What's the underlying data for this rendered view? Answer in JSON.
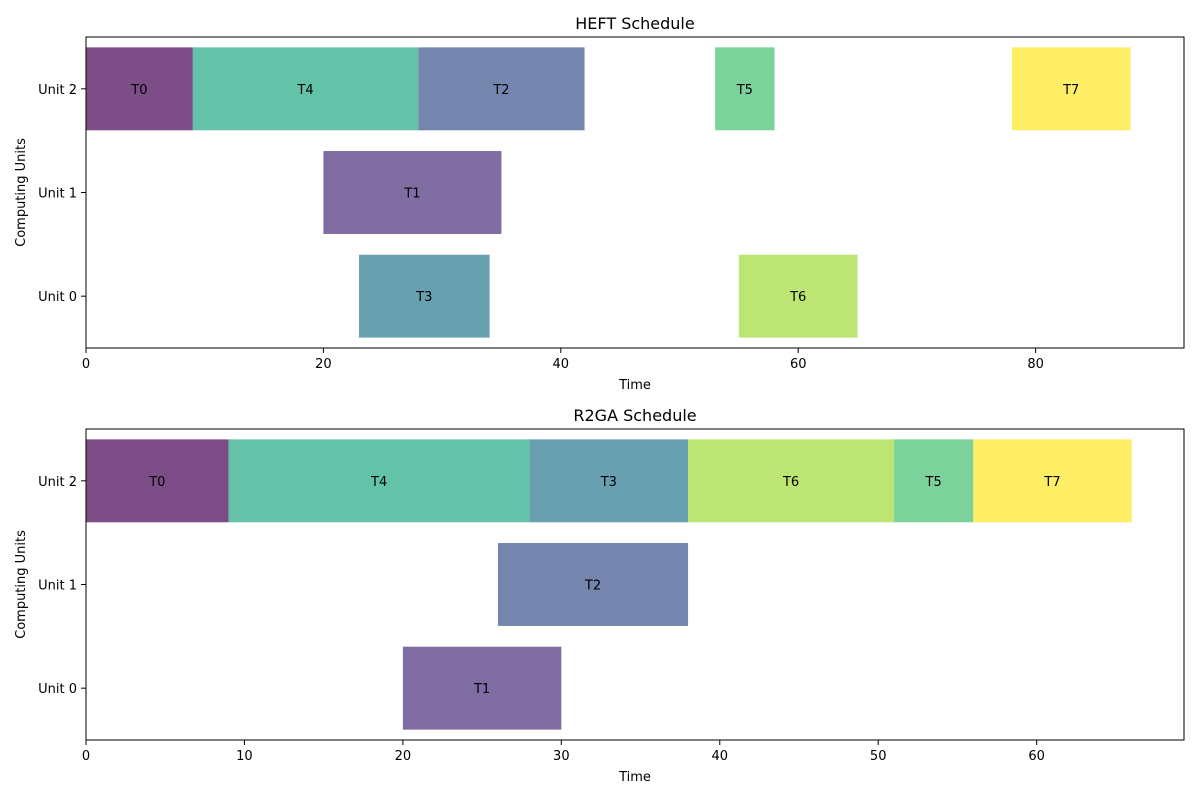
{
  "chart_data": [
    {
      "type": "bar",
      "orientation": "horizontal-gantt",
      "title": "HEFT Schedule",
      "xlabel": "Time",
      "ylabel": "Computing Units",
      "xlim": [
        0,
        92.5
      ],
      "xticks": [
        0,
        20,
        40,
        60,
        80
      ],
      "units": [
        "Unit 0",
        "Unit 1",
        "Unit 2"
      ],
      "grid": false,
      "tasks": [
        {
          "label": "T0",
          "unit": 2,
          "start": 0,
          "end": 9,
          "color": "#440154"
        },
        {
          "label": "T4",
          "unit": 2,
          "start": 9,
          "end": 28,
          "color": "#22a884"
        },
        {
          "label": "T2",
          "unit": 2,
          "start": 28,
          "end": 42,
          "color": "#3b528b"
        },
        {
          "label": "T5",
          "unit": 2,
          "start": 53,
          "end": 58,
          "color": "#44bf70"
        },
        {
          "label": "T7",
          "unit": 2,
          "start": 78,
          "end": 88,
          "color": "#fde725"
        },
        {
          "label": "T1",
          "unit": 1,
          "start": 20,
          "end": 35,
          "color": "#472d7b"
        },
        {
          "label": "T3",
          "unit": 0,
          "start": 23,
          "end": 34,
          "color": "#2a788e"
        },
        {
          "label": "T6",
          "unit": 0,
          "start": 55,
          "end": 65,
          "color": "#a0da39"
        }
      ]
    },
    {
      "type": "bar",
      "orientation": "horizontal-gantt",
      "title": "R2GA Schedule",
      "xlabel": "Time",
      "ylabel": "Computing Units",
      "xlim": [
        0,
        69.3
      ],
      "xticks": [
        0,
        10,
        20,
        30,
        40,
        50,
        60
      ],
      "units": [
        "Unit 0",
        "Unit 1",
        "Unit 2"
      ],
      "grid": false,
      "tasks": [
        {
          "label": "T0",
          "unit": 2,
          "start": 0,
          "end": 9,
          "color": "#440154"
        },
        {
          "label": "T4",
          "unit": 2,
          "start": 9,
          "end": 28,
          "color": "#22a884"
        },
        {
          "label": "T3",
          "unit": 2,
          "start": 28,
          "end": 38,
          "color": "#2a788e"
        },
        {
          "label": "T6",
          "unit": 2,
          "start": 38,
          "end": 51,
          "color": "#a0da39"
        },
        {
          "label": "T5",
          "unit": 2,
          "start": 51,
          "end": 56,
          "color": "#44bf70"
        },
        {
          "label": "T7",
          "unit": 2,
          "start": 56,
          "end": 66,
          "color": "#fde725"
        },
        {
          "label": "T2",
          "unit": 1,
          "start": 26,
          "end": 38,
          "color": "#3b528b"
        },
        {
          "label": "T1",
          "unit": 0,
          "start": 20,
          "end": 30,
          "color": "#472d7b"
        }
      ]
    }
  ]
}
